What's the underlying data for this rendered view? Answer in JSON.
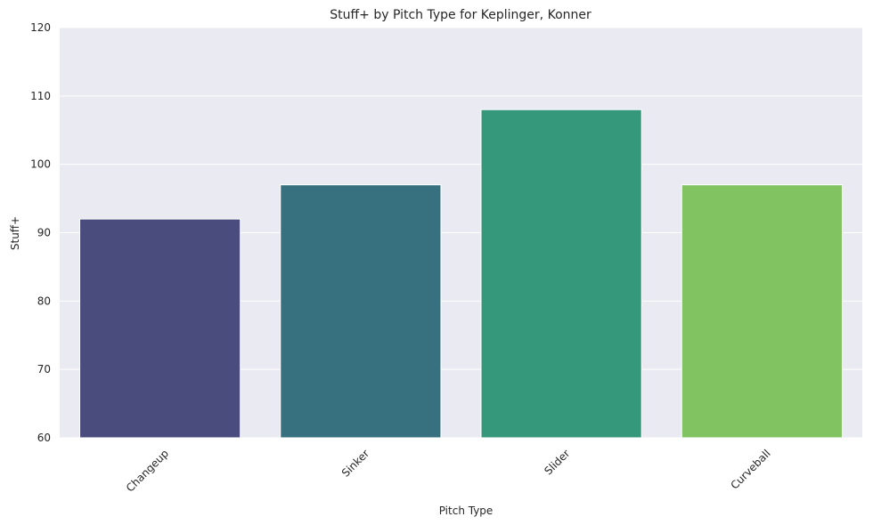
{
  "chart_data": {
    "type": "bar",
    "title": "Stuff+ by Pitch Type for Keplinger, Konner",
    "xlabel": "Pitch Type",
    "ylabel": "Stuff+",
    "categories": [
      "Changeup",
      "Sinker",
      "Slider",
      "Curveball"
    ],
    "values": [
      92,
      97,
      108,
      97
    ],
    "colors": [
      "#4a4c7d",
      "#37717f",
      "#36987a",
      "#81c261"
    ],
    "ylim": [
      60,
      120
    ],
    "yticks": [
      60,
      70,
      80,
      90,
      100,
      110,
      120
    ],
    "grid": true,
    "background": "#eaeaf2",
    "xtick_rotation": "45 degrees"
  }
}
